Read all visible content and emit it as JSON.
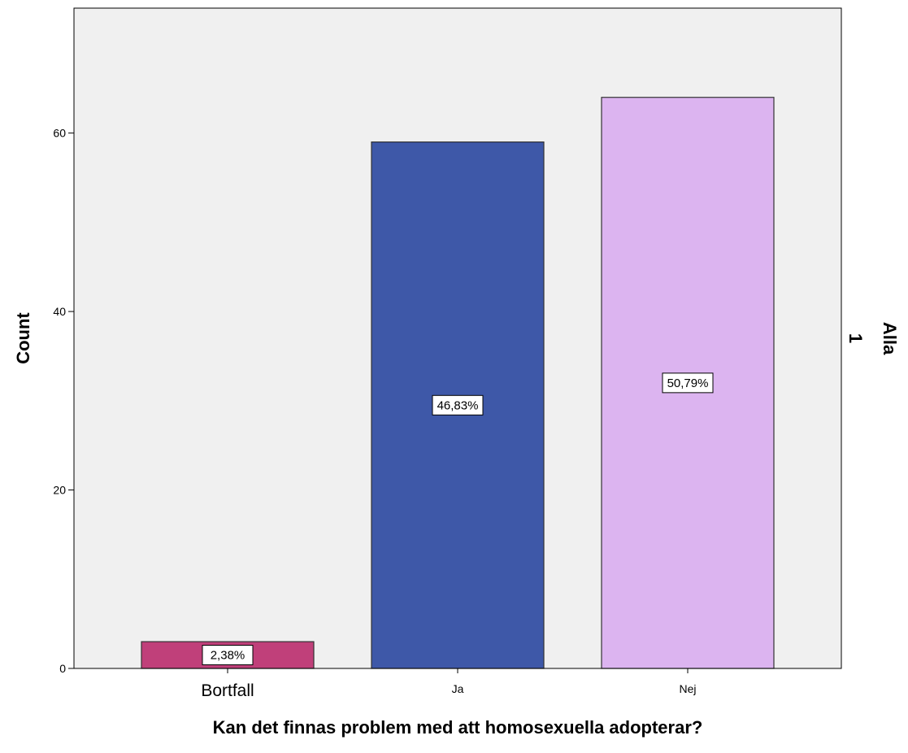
{
  "chart_data": {
    "type": "bar",
    "categories": [
      "Bortfall",
      "Ja",
      "Nej"
    ],
    "values": [
      3,
      59,
      64
    ],
    "data_labels": [
      "2,38%",
      "46,83%",
      "50,79%"
    ],
    "colors": [
      "#c0407a",
      "#3e58a8",
      "#dcb4f0"
    ],
    "plot_background": "#f0f0f0",
    "xlabel": "Kan det finnas problem med att homosexuella adopterar?",
    "ylabel": "Count",
    "yticks": [
      "0",
      "20",
      "40",
      "60"
    ],
    "ytick_values": [
      0,
      20,
      40,
      60
    ],
    "ylim": [
      0,
      74
    ],
    "panel_title": "Alla",
    "panel_value": "1",
    "grid": false,
    "legend": "none"
  }
}
